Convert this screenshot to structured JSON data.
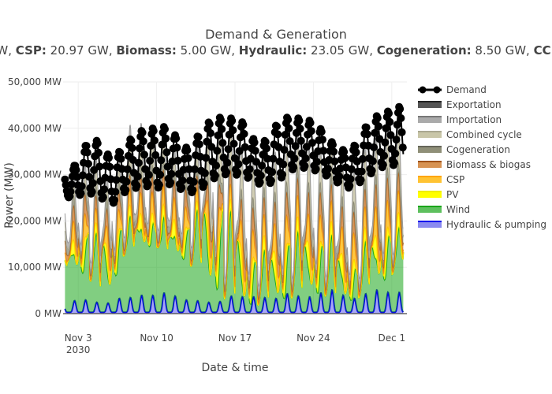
{
  "chart_data": {
    "type": "area",
    "title": "Demand & Generation",
    "subtitle_parts": [
      {
        "label": "",
        "value": "W, "
      },
      {
        "label": "CSP:",
        "value": " 20.97 GW, "
      },
      {
        "label": "Biomass:",
        "value": " 5.00 GW, "
      },
      {
        "label": "Hydraulic:",
        "value": " 23.05 GW, "
      },
      {
        "label": "Cogeneration:",
        "value": " 8.50 GW, "
      },
      {
        "label": "CC:",
        "value": ""
      }
    ],
    "xlabel": "Date & time",
    "ylabel": "Power (MW)",
    "x_range_days": [
      0,
      31
    ],
    "ylim": [
      0,
      50000
    ],
    "y_ticks": [
      {
        "value": 0,
        "label": "0 MW"
      },
      {
        "value": 10000,
        "label": "10,000 MW"
      },
      {
        "value": 20000,
        "label": "20,000 MW"
      },
      {
        "value": 30000,
        "label": "30,000 MW"
      },
      {
        "value": 40000,
        "label": "40,000 MW"
      },
      {
        "value": 50000,
        "label": "50,000 MW"
      }
    ],
    "x_ticks": [
      {
        "day": 2,
        "label": "Nov 3",
        "sub": "2030"
      },
      {
        "day": 9,
        "label": "Nov 10",
        "sub": ""
      },
      {
        "day": 16,
        "label": "Nov 17",
        "sub": ""
      },
      {
        "day": 23,
        "label": "Nov 24",
        "sub": ""
      },
      {
        "day": 30,
        "label": "Dec 1",
        "sub": ""
      }
    ],
    "legend_position": "right",
    "series": [
      {
        "name": "Demand",
        "color": "#000000",
        "style": "line-markers"
      },
      {
        "name": "Exportation",
        "color": "#555555",
        "style": "area"
      },
      {
        "name": "Importation",
        "color": "#aaaaaa",
        "style": "area"
      },
      {
        "name": "Combined cycle",
        "color": "#c9c6a8",
        "style": "area"
      },
      {
        "name": "Cogeneration",
        "color": "#8f8f78",
        "style": "area"
      },
      {
        "name": "Biomass & biogas",
        "color": "#b5651d",
        "style": "area"
      },
      {
        "name": "CSP",
        "color": "#ffb400",
        "style": "area"
      },
      {
        "name": "PV",
        "color": "#ffff00",
        "style": "area"
      },
      {
        "name": "Wind",
        "color": "#1aa51a",
        "style": "area"
      },
      {
        "name": "Hydraulic & pumping",
        "color": "#0000ee",
        "style": "area"
      }
    ],
    "daily": {
      "day": [
        0,
        1,
        2,
        3,
        4,
        5,
        6,
        7,
        8,
        9,
        10,
        11,
        12,
        13,
        14,
        15,
        16,
        17,
        18,
        19,
        20,
        21,
        22,
        23,
        24,
        25,
        26,
        27,
        28,
        29,
        30
      ],
      "demand_min": [
        25000,
        25500,
        26000,
        25000,
        23500,
        26000,
        27000,
        27500,
        27000,
        28000,
        27000,
        26000,
        27000,
        29000,
        30000,
        30000,
        29500,
        28000,
        28000,
        29000,
        31000,
        31500,
        31000,
        30000,
        28500,
        27000,
        28000,
        30000,
        31500,
        32000,
        32000
      ],
      "demand_max": [
        30000,
        33000,
        38000,
        37000,
        33000,
        36000,
        38500,
        40000,
        40000,
        40500,
        37500,
        35000,
        40000,
        42000,
        42500,
        42000,
        41000,
        36000,
        38000,
        42000,
        42500,
        42000,
        41500,
        39000,
        36000,
        35000,
        37000,
        42000,
        43000,
        44000,
        45000
      ],
      "wind_min": [
        10000,
        9000,
        7000,
        4000,
        5000,
        12000,
        13500,
        14000,
        14000,
        13000,
        12000,
        10000,
        9000,
        6000,
        3000,
        2000,
        1500,
        1500,
        2000,
        2500,
        3000,
        4000,
        4000,
        3500,
        3000,
        2000,
        3000,
        5000,
        6000,
        8000,
        11000
      ],
      "wind_max": [
        11000,
        15000,
        17000,
        14000,
        16000,
        17500,
        18000,
        18000,
        17000,
        16500,
        16000,
        18000,
        21000,
        23000,
        22000,
        17000,
        12000,
        10000,
        11000,
        13000,
        14000,
        14500,
        14500,
        13000,
        12000,
        10000,
        8000,
        14000,
        15000,
        15000,
        14000
      ],
      "renew_max": [
        22000,
        28000,
        30000,
        24000,
        28000,
        30000,
        31000,
        32000,
        31500,
        32000,
        30000,
        29000,
        31000,
        34000,
        33000,
        30000,
        29000,
        26000,
        28000,
        30000,
        31000,
        31000,
        31000,
        29000,
        28000,
        26000,
        26000,
        30000,
        32000,
        33000,
        31000
      ],
      "gen_top_max": [
        28000,
        34000,
        35000,
        32000,
        33000,
        36000,
        43000,
        41500,
        40000,
        40000,
        35000,
        33000,
        38000,
        48000,
        43000,
        40000,
        41000,
        35000,
        37000,
        41000,
        40000,
        40000,
        41000,
        37000,
        37000,
        35000,
        35000,
        39000,
        43000,
        43000,
        41000
      ],
      "hydro_max": [
        1500,
        3000,
        2500,
        2000,
        2000,
        3500,
        3000,
        4000,
        3500,
        4500,
        3000,
        2500,
        2500,
        2000,
        2500,
        4000,
        3000,
        3500,
        3000,
        3000,
        4500,
        3000,
        3500,
        4500,
        5000,
        3000,
        3000,
        4500,
        5000,
        4000,
        4500
      ]
    }
  }
}
